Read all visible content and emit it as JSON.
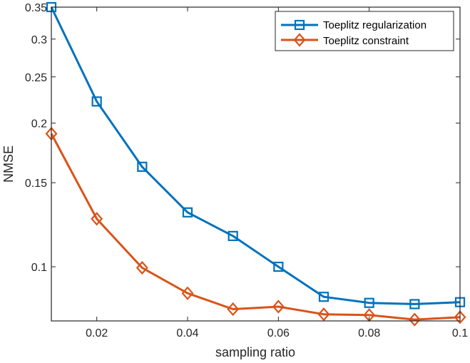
{
  "chart_data": {
    "type": "line",
    "title": "",
    "xlabel": "sampling ratio",
    "ylabel": "NMSE",
    "xlim": [
      0.01,
      0.1
    ],
    "ylim": [
      0.077,
      0.35
    ],
    "yscale": "log",
    "grid": false,
    "legend_position": "top-right",
    "x_ticks": [
      0.02,
      0.04,
      0.06,
      0.08,
      0.1
    ],
    "x_tick_labels": [
      "0.02",
      "0.04",
      "0.06",
      "0.08",
      "0.1"
    ],
    "y_ticks": [
      0.1,
      0.15,
      0.2,
      0.25,
      0.3,
      0.35
    ],
    "y_tick_labels": [
      "0.1",
      "0.15",
      "0.2",
      "0.25",
      "0.3",
      "0.35"
    ],
    "x": [
      0.01,
      0.02,
      0.03,
      0.04,
      0.05,
      0.06,
      0.07,
      0.08,
      0.09,
      0.1
    ],
    "series": [
      {
        "name": "Toeplitz regularization",
        "color": "#0072BD",
        "marker": "square",
        "values": [
          0.35,
          0.222,
          0.162,
          0.13,
          0.116,
          0.1,
          0.0865,
          0.084,
          0.0835,
          0.0843
        ]
      },
      {
        "name": "Toeplitz constraint",
        "color": "#D95319",
        "marker": "diamond",
        "values": [
          0.19,
          0.126,
          0.0995,
          0.088,
          0.0815,
          0.0825,
          0.0795,
          0.0792,
          0.0775,
          0.0784
        ]
      }
    ]
  }
}
